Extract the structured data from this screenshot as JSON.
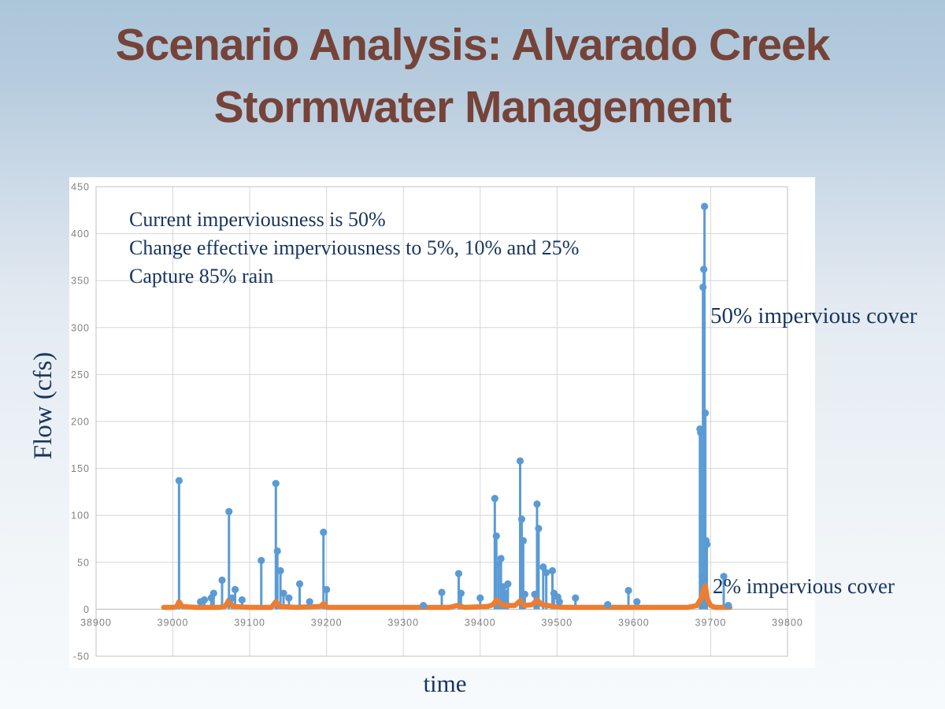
{
  "slide": {
    "title": {
      "line1": "Scenario Analysis: Alvarado Creek",
      "line2": "Stormwater Management"
    }
  },
  "colors": {
    "title_brown": "#764339",
    "navy_text": "#17365d",
    "panel_bg": "#ffffff",
    "gridline": "#d6d6d6",
    "axis_line": "#c0c0c0",
    "tick_text": "#808080",
    "series_50_blue": "#5b9bd5",
    "series_2_orange": "#ed7d31"
  },
  "chart_data": {
    "type": "line",
    "title": "",
    "xlabel": "time",
    "ylabel": "Flow (cfs)",
    "xlim": [
      38900,
      39800
    ],
    "ylim": [
      -50,
      450
    ],
    "grid": true,
    "x_ticks": [
      38900,
      39000,
      39100,
      39200,
      39300,
      39400,
      39500,
      39600,
      39700,
      39800
    ],
    "y_ticks": [
      -50,
      0,
      50,
      100,
      150,
      200,
      250,
      300,
      350,
      400,
      450
    ],
    "annotation": [
      "Current imperviousness is 50%",
      "Change effective imperviousness to 5%, 10% and 25%",
      "Capture 85% rain"
    ],
    "series": [
      {
        "name": "50% impervious cover",
        "style": "stem",
        "color": "#5b9bd5",
        "points": [
          [
            39008,
            137
          ],
          [
            39036,
            8
          ],
          [
            39041,
            10
          ],
          [
            39050,
            12
          ],
          [
            39053,
            17
          ],
          [
            39064,
            31
          ],
          [
            39073,
            104
          ],
          [
            39077,
            12
          ],
          [
            39081,
            21
          ],
          [
            39090,
            10
          ],
          [
            39115,
            52
          ],
          [
            39134,
            134
          ],
          [
            39136,
            62
          ],
          [
            39140,
            41
          ],
          [
            39144,
            17
          ],
          [
            39151,
            12
          ],
          [
            39165,
            27
          ],
          [
            39178,
            8
          ],
          [
            39196,
            82
          ],
          [
            39200,
            21
          ],
          [
            39326,
            4
          ],
          [
            39350,
            18
          ],
          [
            39372,
            38
          ],
          [
            39375,
            17
          ],
          [
            39400,
            12
          ],
          [
            39419,
            118
          ],
          [
            39421,
            78
          ],
          [
            39424,
            48
          ],
          [
            39427,
            54
          ],
          [
            39430,
            24
          ],
          [
            39433,
            17
          ],
          [
            39436,
            27
          ],
          [
            39452,
            158
          ],
          [
            39454,
            96
          ],
          [
            39456,
            73
          ],
          [
            39458,
            16
          ],
          [
            39471,
            16
          ],
          [
            39474,
            112
          ],
          [
            39476,
            86
          ],
          [
            39482,
            45
          ],
          [
            39486,
            39
          ],
          [
            39494,
            41
          ],
          [
            39496,
            17
          ],
          [
            39501,
            13
          ],
          [
            39503,
            8
          ],
          [
            39524,
            12
          ],
          [
            39566,
            5
          ],
          [
            39593,
            20
          ],
          [
            39604,
            8
          ],
          [
            39686,
            192
          ],
          [
            39687,
            188
          ],
          [
            39689,
            35
          ],
          [
            39690,
            343
          ],
          [
            39691,
            362
          ],
          [
            39692,
            429
          ],
          [
            39693,
            209
          ],
          [
            39694,
            73
          ],
          [
            39695,
            69
          ],
          [
            39717,
            35
          ],
          [
            39723,
            4
          ]
        ]
      },
      {
        "name": "2% impervious cover",
        "style": "line",
        "color": "#ed7d31",
        "points": [
          [
            38988,
            2
          ],
          [
            39000,
            2
          ],
          [
            39005,
            3
          ],
          [
            39008,
            8
          ],
          [
            39012,
            3
          ],
          [
            39030,
            2
          ],
          [
            39060,
            2
          ],
          [
            39068,
            3
          ],
          [
            39073,
            10
          ],
          [
            39078,
            3
          ],
          [
            39100,
            2
          ],
          [
            39128,
            2
          ],
          [
            39134,
            8
          ],
          [
            39139,
            3
          ],
          [
            39160,
            2
          ],
          [
            39192,
            3
          ],
          [
            39196,
            6
          ],
          [
            39201,
            2
          ],
          [
            39250,
            2
          ],
          [
            39300,
            2
          ],
          [
            39330,
            2
          ],
          [
            39360,
            2
          ],
          [
            39370,
            4
          ],
          [
            39380,
            2
          ],
          [
            39410,
            3
          ],
          [
            39417,
            5
          ],
          [
            39421,
            10
          ],
          [
            39426,
            6
          ],
          [
            39431,
            4
          ],
          [
            39445,
            4
          ],
          [
            39452,
            9
          ],
          [
            39458,
            4
          ],
          [
            39468,
            5
          ],
          [
            39474,
            10
          ],
          [
            39480,
            5
          ],
          [
            39488,
            4
          ],
          [
            39495,
            3
          ],
          [
            39510,
            2
          ],
          [
            39550,
            2
          ],
          [
            39600,
            2
          ],
          [
            39640,
            2
          ],
          [
            39670,
            2
          ],
          [
            39682,
            4
          ],
          [
            39688,
            12
          ],
          [
            39691,
            22
          ],
          [
            39693,
            25
          ],
          [
            39696,
            10
          ],
          [
            39700,
            4
          ],
          [
            39706,
            2
          ],
          [
            39725,
            2
          ]
        ]
      }
    ]
  }
}
